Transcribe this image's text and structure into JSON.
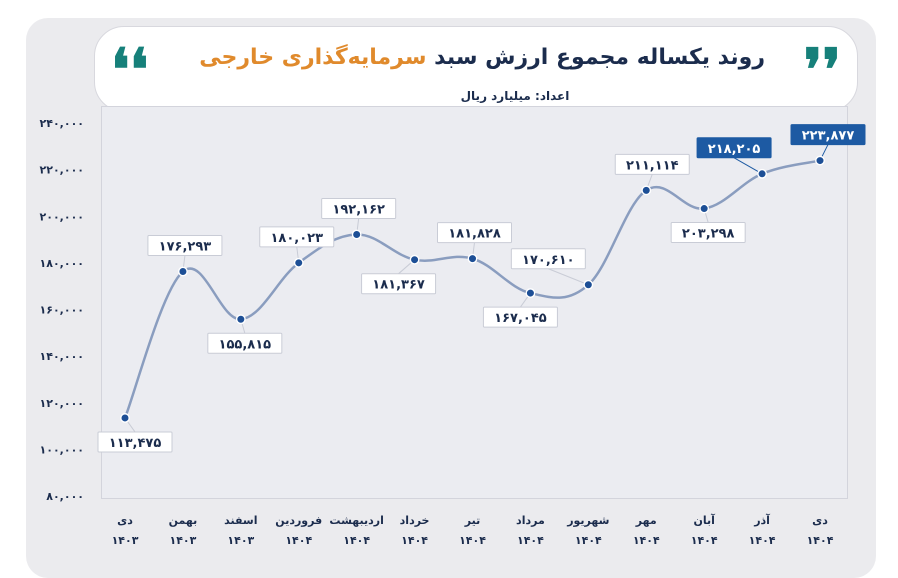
{
  "header": {
    "title_part1": "روند یکساله مجموع ارزش سبد",
    "title_part2": "سرمایه‌گذاری خارجی",
    "subtitle": "اعداد: میلیارد ریال",
    "quote_left": "❛❛",
    "quote_right": "❜❜"
  },
  "colors": {
    "accent_orange": "#e08a2c",
    "title_navy": "#1b2c4d",
    "quote_teal": "#16807a",
    "line": "#8a9dbf",
    "point": "#1d4f96",
    "highlight_box": "#1d5aa3"
  },
  "chart_data": {
    "type": "line",
    "ylim": [
      80000,
      240000
    ],
    "yticks": [
      "۸۰,۰۰۰",
      "۱۰۰,۰۰۰",
      "۱۲۰,۰۰۰",
      "۱۴۰,۰۰۰",
      "۱۶۰,۰۰۰",
      "۱۸۰,۰۰۰",
      "۲۰۰,۰۰۰",
      "۲۲۰,۰۰۰",
      "۲۴۰,۰۰۰"
    ],
    "ytick_values": [
      80000,
      100000,
      120000,
      140000,
      160000,
      180000,
      200000,
      220000,
      240000
    ],
    "grid": false,
    "categories": [
      {
        "month": "دی",
        "year": "۱۴۰۳"
      },
      {
        "month": "بهمن",
        "year": "۱۴۰۳"
      },
      {
        "month": "اسفند",
        "year": "۱۴۰۳"
      },
      {
        "month": "فروردین",
        "year": "۱۴۰۴"
      },
      {
        "month": "اردیبهشت",
        "year": "۱۴۰۴"
      },
      {
        "month": "خرداد",
        "year": "۱۴۰۴"
      },
      {
        "month": "تیر",
        "year": "۱۴۰۴"
      },
      {
        "month": "مرداد",
        "year": "۱۴۰۴"
      },
      {
        "month": "شهریور",
        "year": "۱۴۰۴"
      },
      {
        "month": "مهر",
        "year": "۱۴۰۴"
      },
      {
        "month": "آبان",
        "year": "۱۴۰۴"
      },
      {
        "month": "آذر",
        "year": "۱۴۰۴"
      },
      {
        "month": "دی",
        "year": "۱۴۰۴"
      }
    ],
    "values": [
      113475,
      176293,
      155815,
      180023,
      192162,
      181367,
      181828,
      167045,
      170610,
      211114,
      203298,
      218205,
      223877
    ],
    "labels": [
      "۱۱۳,۴۷۵",
      "۱۷۶,۲۹۳",
      "۱۵۵,۸۱۵",
      "۱۸۰,۰۲۳",
      "۱۹۲,۱۶۲",
      "۱۸۱,۳۶۷",
      "۱۸۱,۸۲۸",
      "۱۶۷,۰۴۵",
      "۱۷۰,۶۱۰",
      "۲۱۱,۱۱۴",
      "۲۰۳,۲۹۸",
      "۲۱۸,۲۰۵",
      "۲۲۳,۸۷۷"
    ],
    "highlighted": [
      false,
      false,
      false,
      false,
      false,
      false,
      false,
      false,
      false,
      false,
      false,
      true,
      true
    ]
  }
}
